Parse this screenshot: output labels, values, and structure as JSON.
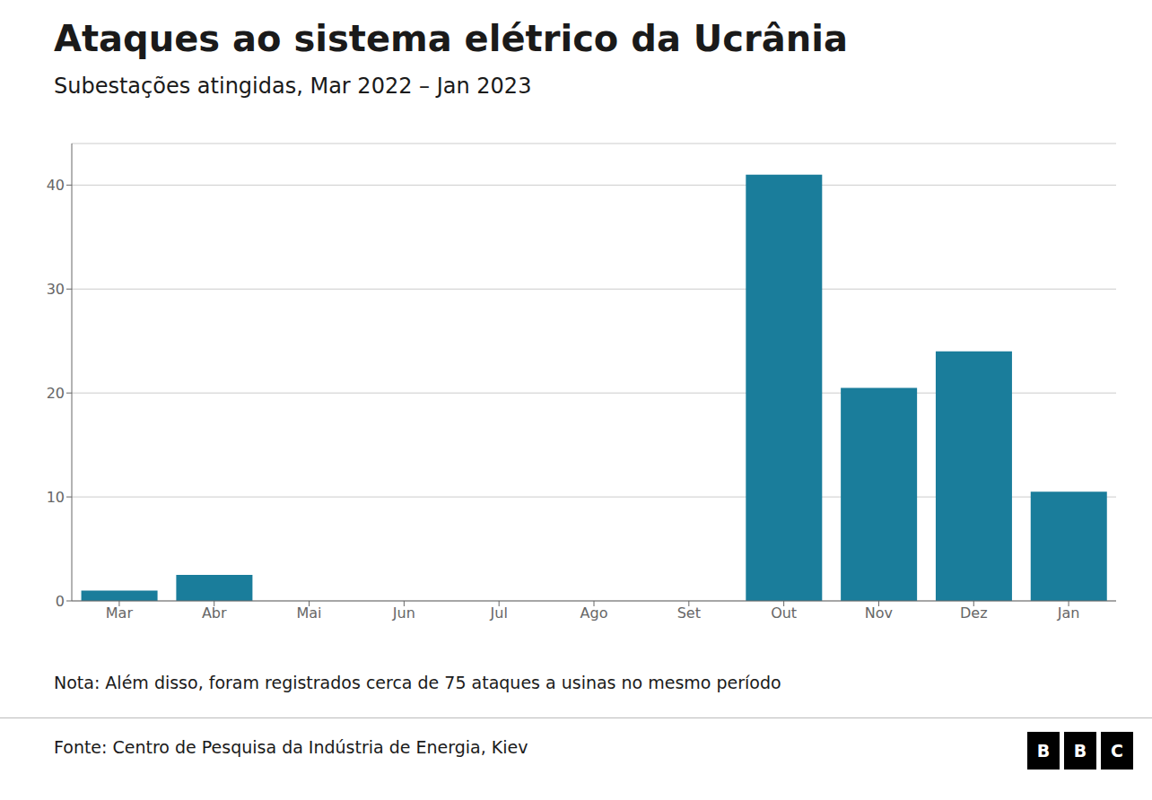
{
  "chart_data": {
    "type": "bar",
    "title": "Ataques ao sistema elétrico da Ucrânia",
    "subtitle": "Subestações atingidas, Mar 2022 – Jan 2023",
    "categories": [
      "Mar",
      "Abr",
      "Mai",
      "Jun",
      "Jul",
      "Ago",
      "Set",
      "Out",
      "Nov",
      "Dez",
      "Jan"
    ],
    "values": [
      1,
      2.5,
      0,
      0,
      0,
      0,
      0,
      41,
      20.5,
      24,
      10.5
    ],
    "color": "#1a7d9b",
    "ylim": [
      0,
      44
    ],
    "yticks": [
      0,
      10,
      20,
      30,
      40
    ],
    "grid": true,
    "note": "Nota: Além disso, foram registrados cerca de 75 ataques a usinas no mesmo período",
    "source": "Fonte: Centro de Pesquisa da Indústria de Energia, Kiev",
    "logo": "BBC"
  }
}
